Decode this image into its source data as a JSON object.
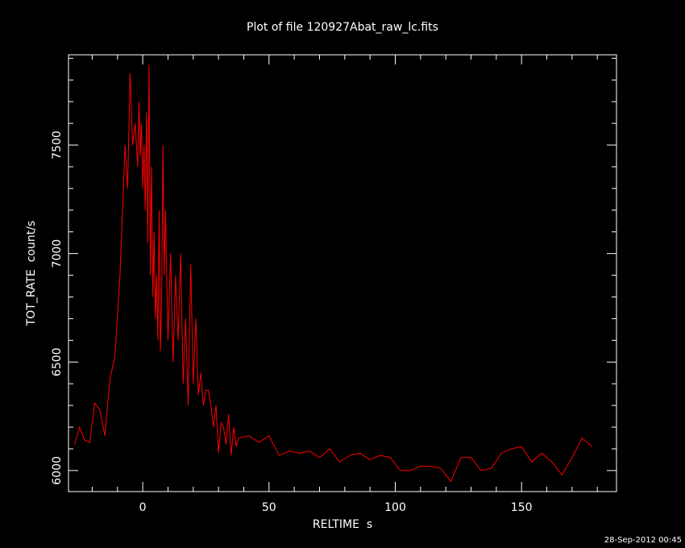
{
  "chart_data": {
    "type": "line",
    "title": "Plot of file 120927Abat_raw_lc.fits",
    "x_label": "RELTIME  s",
    "y_label": "TOT_RATE  count/s",
    "timestamp": "28-Sep-2012 00:45",
    "color": "#ff0000",
    "xlim": [
      -29.4,
      187.6
    ],
    "ylim": [
      5903,
      7916
    ],
    "xticks": [
      0,
      50,
      100,
      150
    ],
    "yticks": [
      6000,
      6500,
      7000,
      7500
    ],
    "xminorticks": [
      -20,
      -10,
      10,
      20,
      30,
      40,
      60,
      70,
      80,
      90,
      110,
      120,
      130,
      140,
      160,
      170,
      180
    ],
    "yminorticks": [
      5100,
      6100,
      6200,
      6300,
      6400,
      6600,
      6700,
      6800,
      6900,
      7100,
      7200,
      7300,
      7400,
      7600,
      7700,
      7800,
      7900
    ],
    "x": [
      -27,
      -25,
      -23,
      -21,
      -19,
      -17,
      -15,
      -13,
      -11,
      -9,
      -7,
      -6,
      -5,
      -4,
      -3,
      -2,
      -1.5,
      -1,
      -0.5,
      0,
      0.5,
      1,
      1.5,
      2,
      2.5,
      3,
      3.5,
      4,
      4.5,
      5,
      5.5,
      6,
      6.5,
      7,
      7.5,
      8,
      8.5,
      9,
      10,
      11,
      12,
      13,
      14,
      15,
      16,
      17,
      18,
      19,
      20,
      21,
      22,
      23,
      24,
      25,
      26,
      27,
      28,
      29,
      30,
      31,
      32,
      33,
      34,
      35,
      36,
      37,
      38,
      42,
      46,
      50,
      54,
      58,
      62,
      66,
      70,
      74,
      78,
      82,
      86,
      90,
      94,
      98,
      102,
      106,
      110,
      114,
      118,
      122,
      126,
      130,
      134,
      138,
      142,
      146,
      150,
      154,
      158,
      162,
      166,
      170,
      174,
      178
    ],
    "values": [
      6120,
      6200,
      6140,
      6130,
      6310,
      6280,
      6160,
      6420,
      6530,
      6900,
      7500,
      7300,
      7830,
      7500,
      7600,
      7400,
      7700,
      7450,
      7600,
      7300,
      7500,
      7200,
      7650,
      7050,
      7870,
      6900,
      7400,
      6800,
      7100,
      6700,
      6900,
      6600,
      7200,
      6550,
      6800,
      7500,
      6900,
      7200,
      6600,
      7000,
      6500,
      6900,
      6600,
      7000,
      6400,
      6700,
      6300,
      6950,
      6400,
      6700,
      6350,
      6450,
      6300,
      6370,
      6370,
      6300,
      6200,
      6300,
      6080,
      6220,
      6200,
      6120,
      6260,
      6070,
      6200,
      6110,
      6150,
      6160,
      6130,
      6160,
      6070,
      6090,
      6080,
      6090,
      6060,
      6100,
      6040,
      6070,
      6080,
      6050,
      6070,
      6060,
      6000,
      6000,
      6020,
      6020,
      6010,
      5950,
      6060,
      6060,
      6000,
      6010,
      6080,
      6100,
      6110,
      6040,
      6080,
      6040,
      5980,
      6060,
      6150,
      6110
    ]
  }
}
